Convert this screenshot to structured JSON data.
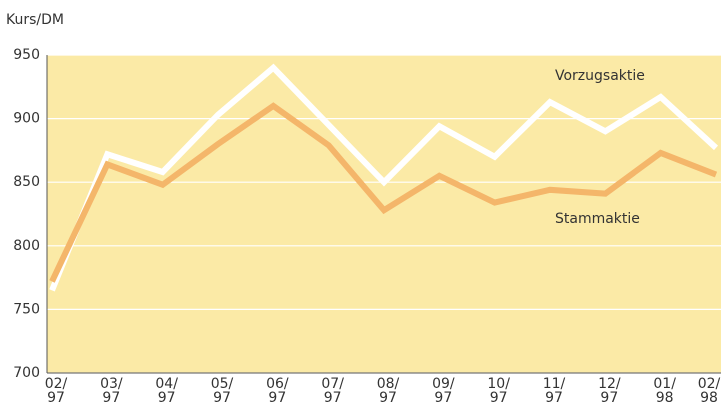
{
  "chart_data": {
    "type": "line",
    "y_axis_label": "Kurs/DM",
    "categories": [
      [
        "02/",
        "97"
      ],
      [
        "03/",
        "97"
      ],
      [
        "04/",
        "97"
      ],
      [
        "05/",
        "97"
      ],
      [
        "06/",
        "97"
      ],
      [
        "07/",
        "97"
      ],
      [
        "08/",
        "97"
      ],
      [
        "09/",
        "97"
      ],
      [
        "10/",
        "97"
      ],
      [
        "11/",
        "97"
      ],
      [
        "12/",
        "97"
      ],
      [
        "01/",
        "98"
      ],
      [
        "02/",
        "98"
      ]
    ],
    "series": [
      {
        "name": "Vorzugsaktie",
        "color": "#ffffff",
        "values": [
          765,
          872,
          858,
          903,
          940,
          895,
          850,
          894,
          870,
          913,
          890,
          917,
          877
        ]
      },
      {
        "name": "Stammaktie",
        "color": "#f4b66a",
        "values": [
          772,
          864,
          848,
          880,
          910,
          879,
          828,
          855,
          834,
          844,
          841,
          873,
          856
        ]
      }
    ],
    "ylim": [
      700,
      950
    ],
    "yticks": [
      700,
      750,
      800,
      850,
      900,
      950
    ],
    "grid": true,
    "background": "#fbeaa6"
  }
}
